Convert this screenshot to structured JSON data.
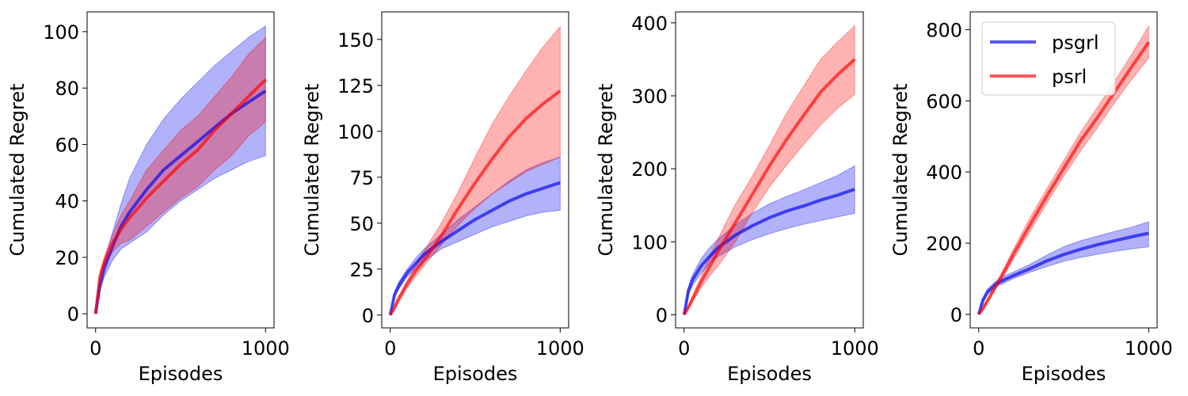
{
  "chart_data": [
    {
      "type": "line",
      "xlabel": "Episodes",
      "ylabel": "Cumulated Regret",
      "xlim": [
        -50,
        1050
      ],
      "ylim": [
        -5,
        107
      ],
      "xticks": [
        0,
        1000
      ],
      "yticks": [
        0,
        20,
        40,
        60,
        80,
        100
      ],
      "x": [
        0,
        25,
        50,
        100,
        150,
        200,
        300,
        400,
        500,
        600,
        700,
        800,
        900,
        1000
      ],
      "series": [
        {
          "name": "psgrl",
          "color": "#0000ee",
          "values": [
            0,
            10,
            16,
            24,
            31,
            36,
            44,
            51,
            56,
            61,
            66,
            71,
            75,
            79
          ],
          "lower": [
            0,
            8,
            13,
            19,
            23,
            25,
            29,
            35,
            40,
            44,
            48,
            51,
            54,
            56
          ],
          "upper": [
            0,
            12,
            19,
            29,
            39,
            48,
            60,
            69,
            76,
            82,
            88,
            93,
            98,
            102
          ]
        },
        {
          "name": "psrl",
          "color": "#ff0000",
          "values": [
            0,
            13,
            18,
            25,
            30,
            34,
            41,
            47,
            53,
            58,
            65,
            71,
            77,
            83
          ],
          "lower": [
            0,
            12,
            17,
            22,
            25,
            26,
            31,
            36,
            41,
            45,
            51,
            56,
            63,
            68
          ],
          "upper": [
            0,
            15,
            20,
            28,
            35,
            40,
            51,
            58,
            65,
            70,
            77,
            84,
            92,
            98
          ]
        }
      ]
    },
    {
      "type": "line",
      "xlabel": "Episodes",
      "ylabel": "Cumulated Regret",
      "xlim": [
        -50,
        1050
      ],
      "ylim": [
        -7,
        165
      ],
      "xticks": [
        0,
        1000
      ],
      "yticks": [
        0,
        25,
        50,
        75,
        100,
        125,
        150
      ],
      "x": [
        0,
        25,
        50,
        100,
        150,
        200,
        300,
        400,
        500,
        600,
        700,
        800,
        900,
        1000
      ],
      "series": [
        {
          "name": "psgrl",
          "color": "#0000ee",
          "values": [
            0,
            11,
            16,
            23,
            28,
            33,
            40,
            46,
            52,
            57,
            62,
            66,
            69,
            72
          ],
          "lower": [
            0,
            10,
            14,
            21,
            25,
            29,
            36,
            40,
            44,
            48,
            51,
            54,
            56,
            57
          ],
          "upper": [
            0,
            12,
            18,
            25,
            31,
            36,
            44,
            52,
            59,
            66,
            73,
            79,
            83,
            86
          ]
        },
        {
          "name": "psrl",
          "color": "#ff0000",
          "values": [
            0,
            4,
            9,
            17,
            24,
            30,
            43,
            58,
            72,
            85,
            97,
            107,
            115,
            122
          ],
          "lower": [
            0,
            3,
            7,
            15,
            21,
            27,
            38,
            49,
            58,
            66,
            72,
            78,
            82,
            86
          ],
          "upper": [
            0,
            5,
            10,
            19,
            27,
            35,
            50,
            67,
            86,
            104,
            119,
            133,
            146,
            157
          ]
        }
      ]
    },
    {
      "type": "line",
      "xlabel": "Episodes",
      "ylabel": "Cumulated Regret",
      "xlim": [
        -50,
        1050
      ],
      "ylim": [
        -18,
        415
      ],
      "xticks": [
        0,
        1000
      ],
      "yticks": [
        0,
        100,
        200,
        300,
        400
      ],
      "x": [
        0,
        25,
        50,
        100,
        150,
        200,
        300,
        400,
        500,
        600,
        700,
        800,
        900,
        1000
      ],
      "series": [
        {
          "name": "psgrl",
          "color": "#0000ee",
          "values": [
            0,
            33,
            48,
            67,
            80,
            92,
            109,
            122,
            133,
            142,
            149,
            157,
            164,
            172
          ],
          "lower": [
            0,
            28,
            40,
            57,
            70,
            80,
            93,
            103,
            111,
            118,
            124,
            129,
            134,
            139
          ],
          "upper": [
            0,
            38,
            55,
            77,
            92,
            104,
            123,
            139,
            152,
            162,
            171,
            181,
            191,
            204
          ]
        },
        {
          "name": "psrl",
          "color": "#ff0000",
          "values": [
            0,
            10,
            22,
            45,
            66,
            87,
            126,
            165,
            204,
            240,
            273,
            305,
            329,
            350
          ],
          "lower": [
            0,
            8,
            18,
            37,
            53,
            67,
            100,
            140,
            175,
            205,
            233,
            260,
            283,
            302
          ],
          "upper": [
            0,
            12,
            26,
            53,
            79,
            105,
            151,
            190,
            232,
            276,
            313,
            350,
            374,
            396
          ]
        }
      ]
    },
    {
      "type": "line",
      "xlabel": "Episodes",
      "ylabel": "Cumulated Regret",
      "xlim": [
        -50,
        1050
      ],
      "ylim": [
        -38,
        850
      ],
      "xticks": [
        0,
        1000
      ],
      "yticks": [
        0,
        200,
        400,
        600,
        800
      ],
      "legend": {
        "placement": "top-left"
      },
      "x": [
        0,
        25,
        50,
        100,
        150,
        200,
        300,
        400,
        500,
        600,
        700,
        800,
        900,
        1000
      ],
      "series": [
        {
          "name": "psgrl",
          "color": "#0000ee",
          "values": [
            0,
            40,
            62,
            85,
            97,
            108,
            128,
            150,
            168,
            183,
            196,
            207,
            218,
            228
          ],
          "lower": [
            0,
            35,
            55,
            77,
            88,
            100,
            118,
            134,
            149,
            160,
            169,
            177,
            184,
            190
          ],
          "upper": [
            0,
            45,
            70,
            93,
            108,
            118,
            140,
            166,
            190,
            207,
            220,
            233,
            245,
            260
          ]
        },
        {
          "name": "psrl",
          "color": "#ff0000",
          "values": [
            0,
            16,
            37,
            78,
            120,
            165,
            250,
            332,
            410,
            488,
            554,
            625,
            695,
            765
          ],
          "lower": [
            0,
            14,
            33,
            71,
            110,
            152,
            232,
            312,
            388,
            460,
            525,
            595,
            660,
            720
          ],
          "upper": [
            0,
            18,
            41,
            85,
            130,
            178,
            270,
            352,
            432,
            512,
            583,
            655,
            730,
            810
          ]
        }
      ]
    }
  ]
}
